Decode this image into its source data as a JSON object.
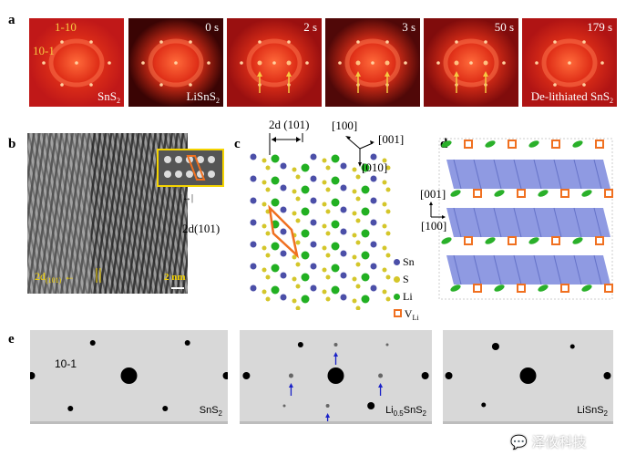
{
  "panel_a": {
    "label": "a",
    "frames": [
      {
        "time": "",
        "caption": "SnS",
        "caption_sub": "2",
        "index_labels": [
          "1-10",
          "10-1"
        ]
      },
      {
        "time": "0 s",
        "caption": "LiSnS",
        "caption_sub": "2"
      },
      {
        "time": "2 s",
        "caption": "",
        "caption_sub": ""
      },
      {
        "time": "3 s",
        "caption": "",
        "caption_sub": ""
      },
      {
        "time": "50 s",
        "caption": "",
        "caption_sub": ""
      },
      {
        "time": "179 s",
        "caption": "De-lithiated SnS",
        "caption_sub": "2"
      }
    ],
    "arrow_color": "#f5c842"
  },
  "panel_b": {
    "label": "b",
    "inset_label": "2d",
    "inset_label_sub": "(101)",
    "bottom_label": "2d",
    "bottom_label_sub": "(101)",
    "scale_bar": "2 nm"
  },
  "panel_c": {
    "label": "c",
    "spacing_label": "2d",
    "spacing_sub": "(101)",
    "axes": [
      "[100]",
      "[001]",
      "[010]"
    ],
    "legend": [
      {
        "name": "Sn",
        "color": "#4b4fa8"
      },
      {
        "name": "S",
        "color": "#d4c62a"
      },
      {
        "name": "Li",
        "color": "#22b022"
      },
      {
        "name": "V",
        "sub": "Li",
        "color": "#f07020"
      }
    ]
  },
  "panel_d": {
    "label": "d",
    "axes": [
      "[001]",
      "[100]"
    ],
    "polyhedra_color": "#6a78d8"
  },
  "panel_e": {
    "label": "e",
    "patterns": [
      {
        "caption": "SnS",
        "caption_sub": "2",
        "index_label": "10-1"
      },
      {
        "caption": "Li",
        "caption_sub": "0.5",
        "caption2": "SnS",
        "caption2_sub": "2"
      },
      {
        "caption": "LiSnS",
        "caption_sub": "2"
      }
    ],
    "arrow_color": "#1a22c8"
  },
  "watermark": "泽攸科技"
}
